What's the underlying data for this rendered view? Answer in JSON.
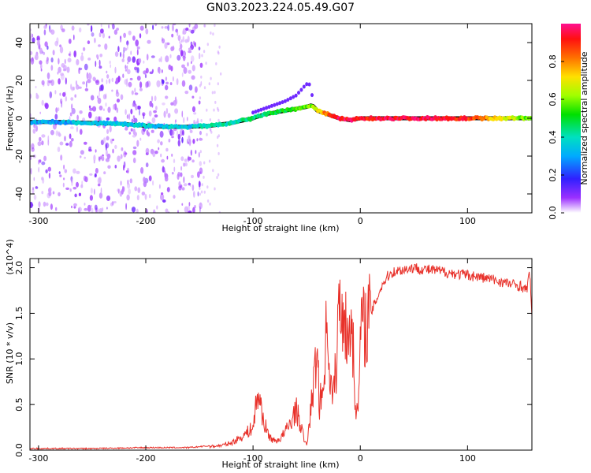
{
  "title": "GN03.2023.224.05.49.G07",
  "colors": {
    "snr_line": "#e8312a",
    "track_outline": "#000000",
    "noise": "#8a2be2"
  },
  "chart_data": [
    {
      "type": "heatmap",
      "xlabel": "Height of straight line (km)",
      "ylabel": "Frequency (Hz)",
      "xlim": [
        -308,
        160
      ],
      "ylim": [
        -50,
        50
      ],
      "x_ticks": [
        -300,
        -200,
        -100,
        0,
        100
      ],
      "x_tick_labels": [
        "-300",
        "-200",
        "-100",
        "0",
        "100"
      ],
      "y_ticks": [
        40,
        20,
        0,
        -20,
        -40
      ],
      "y_tick_labels": [
        "40",
        "20",
        "0",
        "-20",
        "-40"
      ],
      "colorbar": {
        "label": "Normalized spectral amplitude",
        "range": [
          0,
          1
        ],
        "ticks": [
          0.0,
          0.2,
          0.4,
          0.6,
          0.8
        ],
        "tick_labels": [
          "0.0",
          "0.2",
          "0.4",
          "0.6",
          "0.8"
        ]
      },
      "main_track": {
        "x": [
          -308,
          -280,
          -250,
          -220,
          -200,
          -180,
          -160,
          -140,
          -120,
          -100,
          -90,
          -80,
          -70,
          -60,
          -50,
          -45,
          -40,
          -30,
          -20,
          -10,
          0,
          20,
          60,
          100,
          160
        ],
        "y": [
          -2,
          -2,
          -2.5,
          -3,
          -4,
          -4.5,
          -4.5,
          -4,
          -2.5,
          0,
          2,
          3,
          4,
          5,
          6,
          7,
          4,
          2,
          0,
          -1,
          0,
          0,
          0,
          0,
          0
        ],
        "amplitude": [
          0.3,
          0.3,
          0.35,
          0.35,
          0.35,
          0.35,
          0.35,
          0.4,
          0.4,
          0.45,
          0.45,
          0.5,
          0.5,
          0.55,
          0.55,
          0.6,
          0.7,
          0.85,
          0.95,
          0.95,
          0.9,
          0.95,
          0.95,
          0.9,
          0.55
        ]
      },
      "upper_branch": {
        "x": [
          -100,
          -90,
          -80,
          -70,
          -60,
          -55,
          -52,
          -48,
          -44
        ],
        "y": [
          3,
          5,
          7,
          9,
          12,
          15,
          17,
          19,
          10
        ]
      }
    },
    {
      "type": "line",
      "xlabel": "Height of straight line (km)",
      "ylabel": "SNR (10 * v/v)",
      "multiplier": "(x10^4)",
      "xlim": [
        -308,
        160
      ],
      "ylim": [
        0,
        2.1
      ],
      "x_ticks": [
        -300,
        -200,
        -100,
        0,
        100
      ],
      "x_tick_labels": [
        "-300",
        "-200",
        "-100",
        "0",
        "100"
      ],
      "y_ticks": [
        0.0,
        0.5,
        1.0,
        1.5,
        2.0
      ],
      "y_tick_labels": [
        "0.0",
        "0.5",
        "1.0",
        "1.5",
        "2.0"
      ],
      "series": [
        {
          "x": [
            -308,
            -250,
            -200,
            -160,
            -140,
            -130,
            -120,
            -110,
            -100,
            -97,
            -95,
            -92,
            -90,
            -88,
            -85,
            -80,
            -75,
            -70,
            -65,
            -60,
            -55,
            -52,
            -50,
            -48,
            -45,
            -42,
            -40,
            -38,
            -35,
            -32,
            -30,
            -28,
            -25,
            -22,
            -20,
            -17,
            -15,
            -12,
            -10,
            -8,
            -5,
            -2,
            0,
            5,
            10,
            15,
            20,
            25,
            30,
            40,
            50,
            60,
            70,
            80,
            90,
            100,
            110,
            120,
            130,
            140,
            150,
            155,
            158,
            160
          ],
          "y": [
            0.01,
            0.01,
            0.02,
            0.02,
            0.04,
            0.05,
            0.08,
            0.15,
            0.25,
            0.5,
            0.62,
            0.45,
            0.3,
            0.25,
            0.15,
            0.1,
            0.12,
            0.2,
            0.3,
            0.45,
            0.25,
            0.1,
            0.05,
            0.25,
            0.55,
            0.9,
            1.1,
            0.5,
            0.65,
            1.25,
            1.35,
            0.7,
            0.6,
            1.0,
            1.6,
            1.45,
            1.7,
            1.1,
            1.35,
            1.5,
            0.6,
            0.35,
            1.3,
            1.4,
            1.5,
            1.65,
            1.8,
            1.9,
            1.95,
            1.98,
            2.0,
            1.98,
            1.97,
            1.95,
            1.93,
            1.92,
            1.9,
            1.88,
            1.85,
            1.82,
            1.8,
            1.75,
            1.95,
            1.5
          ]
        }
      ]
    }
  ]
}
